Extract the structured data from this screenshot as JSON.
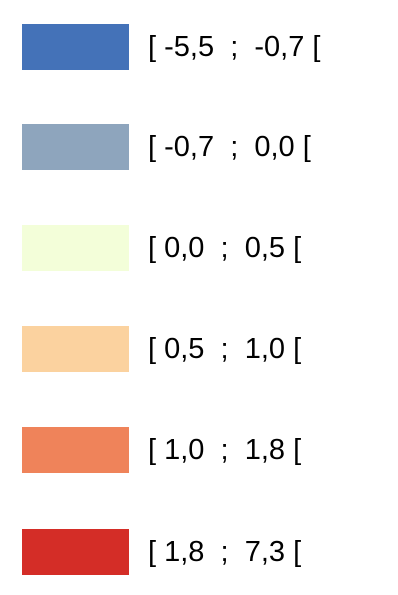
{
  "legend": {
    "items": [
      {
        "label": "[ -5,5  ;  -0,7 [",
        "color": "#4472b8"
      },
      {
        "label": "[ -0,7  ;  0,0 [",
        "color": "#8ea5bd"
      },
      {
        "label": "[ 0,0  ;  0,5 [",
        "color": "#f3fed9"
      },
      {
        "label": "[ 0,5  ;  1,0 [",
        "color": "#fbd29f"
      },
      {
        "label": "[ 1,0  ;  1,8 [",
        "color": "#ef835a"
      },
      {
        "label": "[ 1,8  ;  7,3 [",
        "color": "#d42d27"
      }
    ]
  }
}
